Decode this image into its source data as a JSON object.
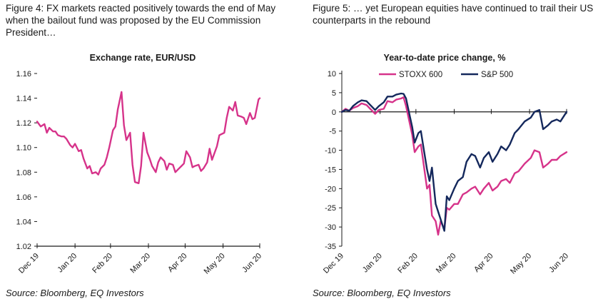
{
  "colors": {
    "pink": "#d6338a",
    "navy": "#14285c",
    "axis": "#1a1a1a"
  },
  "left": {
    "caption": "Figure 4: FX markets reacted positively towards the end of May when the bailout fund was proposed by the EU Commission President…",
    "source": "Source: Bloomberg, EQ Investors"
  },
  "right": {
    "caption": "Figure 5: … yet European equities have continued to trail their US counterparts in the rebound",
    "source": "Source: Bloomberg, EQ Investors"
  },
  "chart_data": [
    {
      "type": "line",
      "title": "Exchange rate, EUR/USD",
      "xlabel": "",
      "ylabel": "",
      "ylim": [
        1.02,
        1.16
      ],
      "yticks": [
        "1.16",
        "1.14",
        "1.12",
        "1.10",
        "1.08",
        "1.06",
        "1.04",
        "1.02"
      ],
      "xlim": [
        "2019-12-31",
        "2020-06-30"
      ],
      "xticks": [
        "Dec 19",
        "Jan 20",
        "Feb 20",
        "Mar 20",
        "Apr 20",
        "May 20",
        "Jun 20"
      ],
      "xtick_dates": [
        "2019-12-31",
        "2020-01-31",
        "2020-02-29",
        "2020-03-31",
        "2020-04-30",
        "2020-05-31",
        "2020-06-30"
      ],
      "grid": false,
      "series": [
        {
          "color": "#d6338a",
          "x": [
            "2019-12-31",
            "2020-01-03",
            "2020-01-06",
            "2020-01-08",
            "2020-01-10",
            "2020-01-13",
            "2020-01-15",
            "2020-01-17",
            "2020-01-20",
            "2020-01-22",
            "2020-01-24",
            "2020-01-27",
            "2020-01-29",
            "2020-01-31",
            "2020-02-03",
            "2020-02-05",
            "2020-02-07",
            "2020-02-10",
            "2020-02-12",
            "2020-02-14",
            "2020-02-17",
            "2020-02-19",
            "2020-02-21",
            "2020-02-24",
            "2020-02-26",
            "2020-02-28",
            "2020-03-02",
            "2020-03-04",
            "2020-03-06",
            "2020-03-09",
            "2020-03-11",
            "2020-03-13",
            "2020-03-16",
            "2020-03-18",
            "2020-03-20",
            "2020-03-23",
            "2020-03-25",
            "2020-03-27",
            "2020-03-30",
            "2020-04-01",
            "2020-04-03",
            "2020-04-06",
            "2020-04-08",
            "2020-04-10",
            "2020-04-13",
            "2020-04-15",
            "2020-04-17",
            "2020-04-20",
            "2020-04-22",
            "2020-04-24",
            "2020-04-27",
            "2020-04-29",
            "2020-05-01",
            "2020-05-04",
            "2020-05-06",
            "2020-05-08",
            "2020-05-11",
            "2020-05-13",
            "2020-05-15",
            "2020-05-18",
            "2020-05-20",
            "2020-05-22",
            "2020-05-26",
            "2020-05-28",
            "2020-06-01",
            "2020-06-03",
            "2020-06-05",
            "2020-06-08",
            "2020-06-10",
            "2020-06-12",
            "2020-06-15",
            "2020-06-17",
            "2020-06-19",
            "2020-06-22",
            "2020-06-24",
            "2020-06-26",
            "2020-06-29",
            "2020-06-30"
          ],
          "y": [
            1.121,
            1.117,
            1.119,
            1.112,
            1.116,
            1.113,
            1.113,
            1.11,
            1.109,
            1.109,
            1.107,
            1.102,
            1.1,
            1.103,
            1.097,
            1.098,
            1.091,
            1.083,
            1.085,
            1.079,
            1.08,
            1.078,
            1.083,
            1.086,
            1.092,
            1.1,
            1.114,
            1.117,
            1.131,
            1.145,
            1.118,
            1.106,
            1.112,
            1.086,
            1.072,
            1.071,
            1.085,
            1.112,
            1.096,
            1.091,
            1.085,
            1.08,
            1.088,
            1.092,
            1.089,
            1.082,
            1.087,
            1.086,
            1.08,
            1.082,
            1.085,
            1.087,
            1.097,
            1.092,
            1.084,
            1.085,
            1.086,
            1.081,
            1.083,
            1.088,
            1.099,
            1.09,
            1.101,
            1.11,
            1.112,
            1.124,
            1.133,
            1.13,
            1.137,
            1.126,
            1.125,
            1.124,
            1.119,
            1.128,
            1.123,
            1.124,
            1.139,
            1.14
          ]
        }
      ]
    },
    {
      "type": "line",
      "title": "Year-to-date price change, %",
      "xlabel": "",
      "ylabel": "",
      "ylim": [
        -35,
        10
      ],
      "yticks": [
        "10",
        "5",
        "0",
        "-5",
        "-10",
        "-15",
        "-20",
        "-25",
        "-30",
        "-35"
      ],
      "xlim": [
        "2019-12-31",
        "2020-06-30"
      ],
      "xticks": [
        "Dec 19",
        "Jan 20",
        "Feb 20",
        "Mar 20",
        "Apr 20",
        "May 20",
        "Jun 20"
      ],
      "xtick_dates": [
        "2019-12-31",
        "2020-01-31",
        "2020-02-29",
        "2020-03-31",
        "2020-04-30",
        "2020-05-31",
        "2020-06-30"
      ],
      "grid": false,
      "legend": "top",
      "series": [
        {
          "name": "STOXX 600",
          "color": "#d6338a",
          "x": [
            "2019-12-31",
            "2020-01-03",
            "2020-01-06",
            "2020-01-09",
            "2020-01-13",
            "2020-01-16",
            "2020-01-20",
            "2020-01-23",
            "2020-01-27",
            "2020-01-30",
            "2020-02-03",
            "2020-02-06",
            "2020-02-10",
            "2020-02-13",
            "2020-02-17",
            "2020-02-19",
            "2020-02-21",
            "2020-02-24",
            "2020-02-26",
            "2020-02-28",
            "2020-03-02",
            "2020-03-04",
            "2020-03-06",
            "2020-03-09",
            "2020-03-11",
            "2020-03-13",
            "2020-03-16",
            "2020-03-18",
            "2020-03-20",
            "2020-03-23",
            "2020-03-25",
            "2020-03-27",
            "2020-03-31",
            "2020-04-03",
            "2020-04-07",
            "2020-04-10",
            "2020-04-14",
            "2020-04-17",
            "2020-04-21",
            "2020-04-24",
            "2020-04-28",
            "2020-05-01",
            "2020-05-05",
            "2020-05-08",
            "2020-05-12",
            "2020-05-15",
            "2020-05-19",
            "2020-05-22",
            "2020-05-27",
            "2020-06-01",
            "2020-06-04",
            "2020-06-08",
            "2020-06-11",
            "2020-06-15",
            "2020-06-18",
            "2020-06-22",
            "2020-06-25",
            "2020-06-30"
          ],
          "y": [
            0.0,
            0.8,
            0.3,
            1.0,
            1.5,
            2.2,
            1.8,
            0.8,
            -0.5,
            0.5,
            0.8,
            2.8,
            2.5,
            3.2,
            3.5,
            3.8,
            1.5,
            -3.0,
            -6.0,
            -10.5,
            -9.0,
            -8.5,
            -13.0,
            -20.0,
            -19.0,
            -27.0,
            -28.5,
            -32.0,
            -28.5,
            -30.5,
            -25.0,
            -25.5,
            -24.0,
            -24.0,
            -21.5,
            -21.0,
            -20.0,
            -19.5,
            -21.5,
            -20.0,
            -18.5,
            -20.5,
            -19.5,
            -18.0,
            -17.5,
            -18.5,
            -16.0,
            -15.5,
            -13.5,
            -12.0,
            -10.0,
            -10.5,
            -14.5,
            -13.5,
            -12.5,
            -12.5,
            -11.5,
            -10.5
          ]
        },
        {
          "name": "S&P 500",
          "color": "#14285c",
          "x": [
            "2019-12-31",
            "2020-01-03",
            "2020-01-06",
            "2020-01-09",
            "2020-01-13",
            "2020-01-16",
            "2020-01-20",
            "2020-01-23",
            "2020-01-27",
            "2020-01-30",
            "2020-02-03",
            "2020-02-06",
            "2020-02-10",
            "2020-02-13",
            "2020-02-17",
            "2020-02-19",
            "2020-02-21",
            "2020-02-24",
            "2020-02-26",
            "2020-02-28",
            "2020-03-02",
            "2020-03-04",
            "2020-03-06",
            "2020-03-09",
            "2020-03-11",
            "2020-03-13",
            "2020-03-16",
            "2020-03-18",
            "2020-03-20",
            "2020-03-23",
            "2020-03-25",
            "2020-03-27",
            "2020-03-31",
            "2020-04-03",
            "2020-04-07",
            "2020-04-10",
            "2020-04-14",
            "2020-04-17",
            "2020-04-21",
            "2020-04-24",
            "2020-04-28",
            "2020-05-01",
            "2020-05-05",
            "2020-05-08",
            "2020-05-12",
            "2020-05-15",
            "2020-05-19",
            "2020-05-22",
            "2020-05-27",
            "2020-06-01",
            "2020-06-04",
            "2020-06-08",
            "2020-06-11",
            "2020-06-15",
            "2020-06-18",
            "2020-06-22",
            "2020-06-25",
            "2020-06-30"
          ],
          "y": [
            0.0,
            0.5,
            0.3,
            1.5,
            2.5,
            3.0,
            2.8,
            1.8,
            0.5,
            1.5,
            2.5,
            4.0,
            4.0,
            4.5,
            4.8,
            4.7,
            3.5,
            -1.0,
            -4.0,
            -8.0,
            -5.5,
            -5.0,
            -9.0,
            -15.0,
            -18.0,
            -14.5,
            -24.0,
            -26.0,
            -28.0,
            -31.0,
            -22.0,
            -23.0,
            -20.0,
            -18.0,
            -17.0,
            -13.0,
            -11.0,
            -11.5,
            -14.5,
            -12.0,
            -10.5,
            -13.0,
            -11.0,
            -9.0,
            -10.0,
            -8.5,
            -5.5,
            -4.5,
            -2.5,
            -1.5,
            0.0,
            0.5,
            -4.5,
            -3.5,
            -2.5,
            -2.0,
            -2.5,
            0.0
          ]
        }
      ]
    }
  ]
}
